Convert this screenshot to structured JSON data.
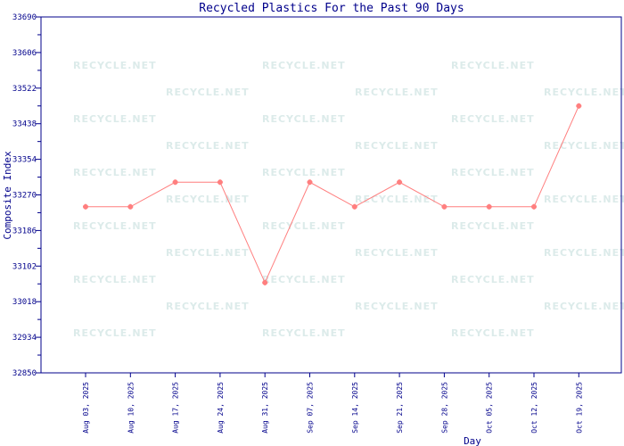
{
  "chart_data": {
    "type": "line",
    "title": "Recycled Plastics For the Past 90 Days",
    "xlabel": "Day",
    "ylabel": "Composite Index",
    "ylim": [
      32850,
      33690
    ],
    "yticks": [
      "32850",
      "32934",
      "33018",
      "33102",
      "33186",
      "33270",
      "33354",
      "33438",
      "33522",
      "33606",
      "33690"
    ],
    "categories": [
      "Aug 03, 2025",
      "Aug 10, 2025",
      "Aug 17, 2025",
      "Aug 24, 2025",
      "Aug 31, 2025",
      "Sep 07, 2025",
      "Sep 14, 2025",
      "Sep 21, 2025",
      "Sep 28, 2025",
      "Oct 05, 2025",
      "Oct 12, 2025",
      "Oct 19, 2025"
    ],
    "series": [
      {
        "values": [
          33242,
          33242,
          33300,
          33300,
          33063,
          33300,
          33242,
          33300,
          33242,
          33242,
          33242,
          33480
        ]
      }
    ],
    "grid": false,
    "colors": {
      "line": "#ff7f7f",
      "axis": "#00008b",
      "watermark": "#dcebea"
    },
    "watermark": "RECYCLE.NET"
  }
}
